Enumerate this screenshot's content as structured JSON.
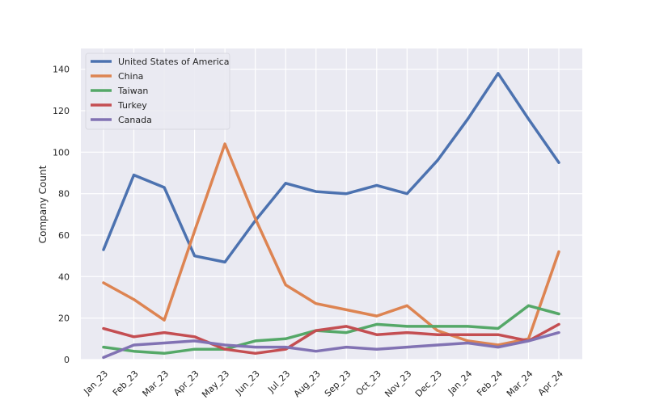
{
  "chart_data": {
    "type": "line",
    "title": "",
    "xlabel": "",
    "ylabel": "Company Count",
    "ylim": [
      0,
      150
    ],
    "yticks": [
      0,
      20,
      40,
      60,
      80,
      100,
      120,
      140
    ],
    "grid": true,
    "legend_position": "top-left",
    "categories": [
      "Jan_23",
      "Feb_23",
      "Mar_23",
      "Apr_23",
      "May_23",
      "Jun_23",
      "Jul_23",
      "Aug_23",
      "Sep_23",
      "Oct_23",
      "Nov_23",
      "Dec_23",
      "Jan_24",
      "Feb_24",
      "Mar_24",
      "Apr_24"
    ],
    "series": [
      {
        "name": "United States of America",
        "color": "#4c72b0",
        "values": [
          53,
          89,
          83,
          50,
          47,
          67,
          85,
          81,
          80,
          84,
          80,
          96,
          116,
          138,
          116,
          95
        ]
      },
      {
        "name": "China",
        "color": "#dd8452",
        "values": [
          37,
          29,
          19,
          62,
          104,
          68,
          36,
          27,
          24,
          21,
          26,
          14,
          9,
          7,
          10,
          52
        ]
      },
      {
        "name": "Taiwan",
        "color": "#55a868",
        "values": [
          6,
          4,
          3,
          5,
          5,
          9,
          10,
          14,
          13,
          17,
          16,
          16,
          16,
          15,
          26,
          22
        ]
      },
      {
        "name": "Turkey",
        "color": "#c44e52",
        "values": [
          15,
          11,
          13,
          11,
          5,
          3,
          5,
          14,
          16,
          12,
          13,
          12,
          12,
          12,
          9,
          17
        ]
      },
      {
        "name": "Canada",
        "color": "#8172b3",
        "values": [
          1,
          7,
          8,
          9,
          7,
          6,
          6,
          4,
          6,
          5,
          6,
          7,
          8,
          6,
          9,
          13
        ]
      }
    ]
  }
}
